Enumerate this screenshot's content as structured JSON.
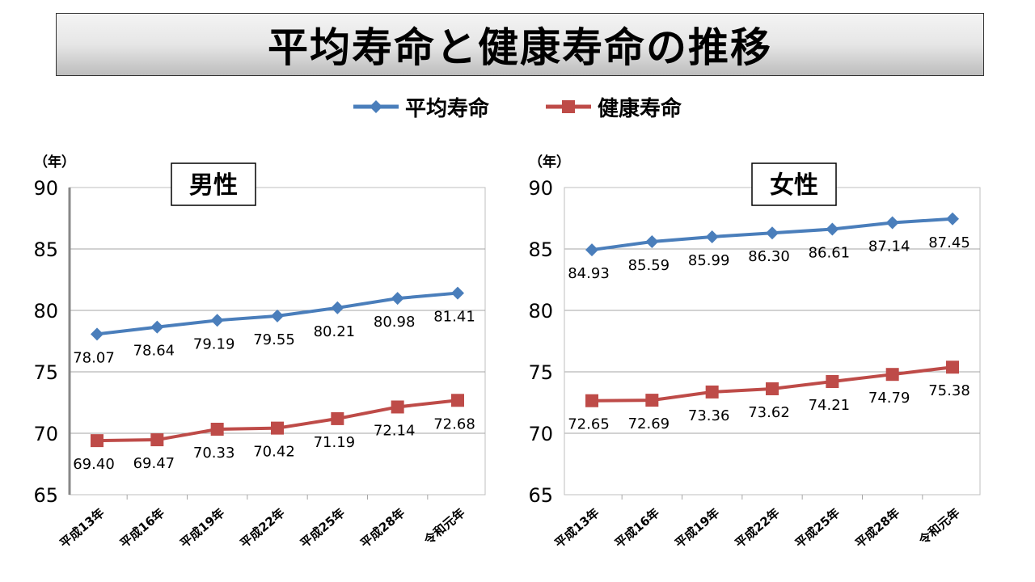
{
  "title": "平均寿命と健康寿命の推移",
  "legend": [
    {
      "label": "平均寿命",
      "color": "#4a7ebb",
      "marker": "diamond"
    },
    {
      "label": "健康寿命",
      "color": "#be4b48",
      "marker": "square"
    }
  ],
  "chart_data": [
    {
      "type": "line",
      "title": "男性",
      "ylabel": "（年）",
      "ylim": [
        65,
        90
      ],
      "yticks": [
        "90",
        "85",
        "80",
        "75",
        "70",
        "65"
      ],
      "categories": [
        "平成13年",
        "平成16年",
        "平成19年",
        "平成22年",
        "平成25年",
        "平成28年",
        "令和元年"
      ],
      "series": [
        {
          "name": "平均寿命",
          "color": "#4a7ebb",
          "marker": "diamond",
          "values": [
            78.07,
            78.64,
            79.19,
            79.55,
            80.21,
            80.98,
            81.41
          ],
          "labels": [
            "78.07",
            "78.64",
            "79.19",
            "79.55",
            "80.21",
            "80.98",
            "81.41"
          ]
        },
        {
          "name": "健康寿命",
          "color": "#be4b48",
          "marker": "square",
          "values": [
            69.4,
            69.47,
            70.33,
            70.42,
            71.19,
            72.14,
            72.68
          ],
          "labels": [
            "69.40",
            "69.47",
            "70.33",
            "70.42",
            "71.19",
            "72.14",
            "72.68"
          ]
        }
      ]
    },
    {
      "type": "line",
      "title": "女性",
      "ylabel": "（年）",
      "ylim": [
        65,
        90
      ],
      "yticks": [
        "90",
        "85",
        "80",
        "75",
        "70",
        "65"
      ],
      "categories": [
        "平成13年",
        "平成16年",
        "平成19年",
        "平成22年",
        "平成25年",
        "平成28年",
        "令和元年"
      ],
      "series": [
        {
          "name": "平均寿命",
          "color": "#4a7ebb",
          "marker": "diamond",
          "values": [
            84.93,
            85.59,
            85.99,
            86.3,
            86.61,
            87.14,
            87.45
          ],
          "labels": [
            "84.93",
            "85.59",
            "85.99",
            "86.30",
            "86.61",
            "87.14",
            "87.45"
          ]
        },
        {
          "name": "健康寿命",
          "color": "#be4b48",
          "marker": "square",
          "values": [
            72.65,
            72.69,
            73.36,
            73.62,
            74.21,
            74.79,
            75.38
          ],
          "labels": [
            "72.65",
            "72.69",
            "73.36",
            "73.62",
            "74.21",
            "74.79",
            "75.38"
          ]
        }
      ]
    }
  ]
}
